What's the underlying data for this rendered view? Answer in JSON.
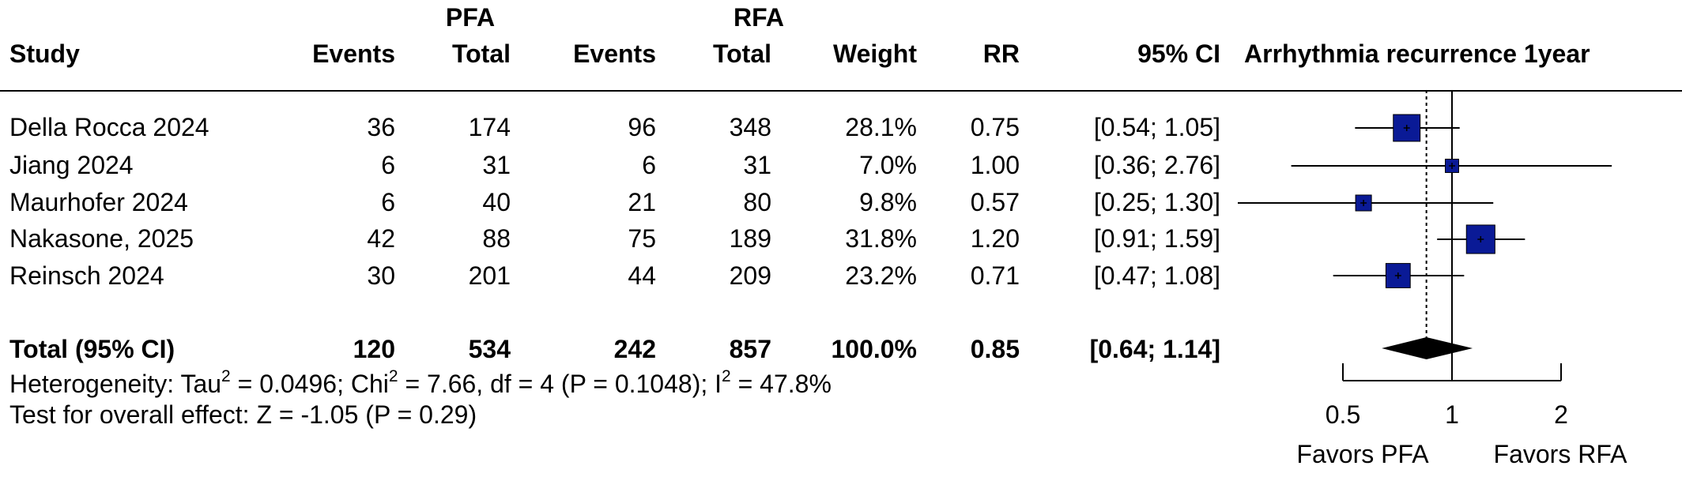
{
  "headers": {
    "study": "Study",
    "pfa_group": "PFA",
    "rfa_group": "RFA",
    "pfa_events": "Events",
    "pfa_total": "Total",
    "rfa_events": "Events",
    "rfa_total": "Total",
    "weight": "Weight",
    "rr": "RR",
    "ci": "95% CI",
    "plot_title": "Arrhythmia recurrence 1year"
  },
  "studies": [
    {
      "name": "Della Rocca 2024",
      "pfa_events": "36",
      "pfa_total": "174",
      "rfa_events": "96",
      "rfa_total": "348",
      "weight": "28.1%",
      "rr": "0.75",
      "ci": "[0.54; 1.05]"
    },
    {
      "name": "Jiang 2024",
      "pfa_events": "6",
      "pfa_total": "31",
      "rfa_events": "6",
      "rfa_total": "31",
      "weight": "7.0%",
      "rr": "1.00",
      "ci": "[0.36; 2.76]"
    },
    {
      "name": "Maurhofer 2024",
      "pfa_events": "6",
      "pfa_total": "40",
      "rfa_events": "21",
      "rfa_total": "80",
      "weight": "9.8%",
      "rr": "0.57",
      "ci": "[0.25; 1.30]"
    },
    {
      "name": "Nakasone, 2025",
      "pfa_events": "42",
      "pfa_total": "88",
      "rfa_events": "75",
      "rfa_total": "189",
      "weight": "31.8%",
      "rr": "1.20",
      "ci": "[0.91; 1.59]"
    },
    {
      "name": "Reinsch 2024",
      "pfa_events": "30",
      "pfa_total": "201",
      "rfa_events": "44",
      "rfa_total": "209",
      "weight": "23.2%",
      "rr": "0.71",
      "ci": "[0.47; 1.08]"
    }
  ],
  "total": {
    "name": "Total (95% CI)",
    "pfa_events": "120",
    "pfa_total": "534",
    "rfa_events": "242",
    "rfa_total": "857",
    "weight": "100.0%",
    "rr": "0.85",
    "ci": "[0.64; 1.14]"
  },
  "heterogeneity": {
    "p1": "Heterogeneity: Tau",
    "s1": "2",
    "p2": " = 0.0496; Chi",
    "s2": "2",
    "p3": " = 7.66, df = 4 (P = 0.1048); I",
    "s3": "2",
    "p4": " = 47.8%"
  },
  "overall_effect": "Test for overall effect: Z = -1.05 (P = 0.29)",
  "favors_left": "Favors PFA",
  "favors_right": "Favors RFA",
  "colors": {
    "box": "#0a1a96",
    "diamond": "#000000",
    "line": "#000000"
  },
  "chart_data": {
    "type": "forest",
    "title": "Arrhythmia recurrence 1year",
    "scale": "log",
    "xlim": [
      0.5,
      2
    ],
    "ticks": [
      0.5,
      1,
      2
    ],
    "tick_labels": [
      "0.5",
      "1",
      "2"
    ],
    "reference_line": 1,
    "pooled_reference_line": 0.85,
    "studies": [
      {
        "name": "Della Rocca 2024",
        "rr": 0.75,
        "lower": 0.54,
        "upper": 1.05,
        "weight": 28.1
      },
      {
        "name": "Jiang 2024",
        "rr": 1.0,
        "lower": 0.36,
        "upper": 2.76,
        "weight": 7.0
      },
      {
        "name": "Maurhofer 2024",
        "rr": 0.57,
        "lower": 0.25,
        "upper": 1.3,
        "weight": 9.8
      },
      {
        "name": "Nakasone, 2025",
        "rr": 1.2,
        "lower": 0.91,
        "upper": 1.59,
        "weight": 31.8
      },
      {
        "name": "Reinsch 2024",
        "rr": 0.71,
        "lower": 0.47,
        "upper": 1.08,
        "weight": 23.2
      }
    ],
    "pooled": {
      "rr": 0.85,
      "lower": 0.64,
      "upper": 1.14
    }
  }
}
